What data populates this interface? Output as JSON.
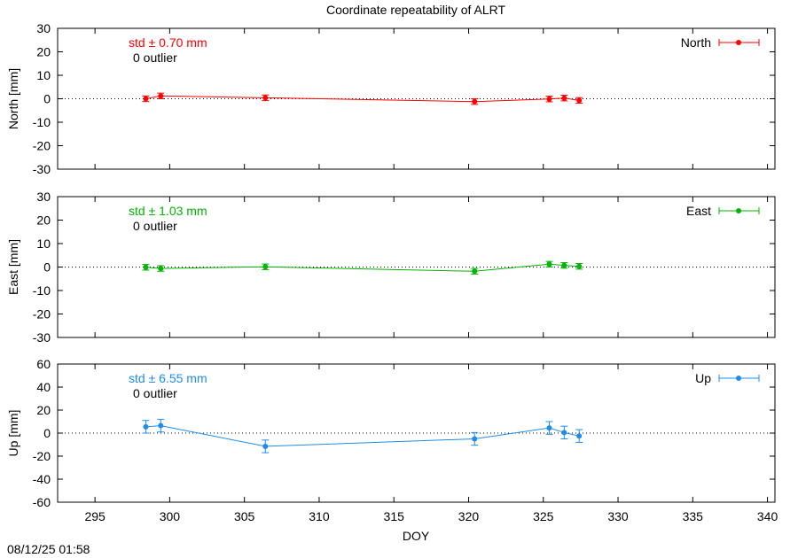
{
  "chart_data": {
    "type": "line",
    "title": "Coordinate repeatability of ALRT",
    "xlabel": "DOY",
    "xlim": [
      292.5,
      340.5
    ],
    "x_ticks": [
      295,
      300,
      305,
      310,
      315,
      320,
      325,
      330,
      335,
      340
    ],
    "timestamp": "08/12/25 01:58",
    "panels": [
      {
        "id": "north",
        "ylabel": "North [mm]",
        "ylim": [
          -30,
          30
        ],
        "y_ticks": [
          30,
          20,
          10,
          0,
          -10,
          -20,
          -30
        ],
        "color": "#ff0000",
        "legend": "North",
        "std_text": "std ± 0.70 mm",
        "outlier_text": "0 outlier",
        "points": [
          {
            "x": 298.4,
            "y": 0.0,
            "err": 1.2
          },
          {
            "x": 299.4,
            "y": 1.2,
            "err": 1.2
          },
          {
            "x": 306.4,
            "y": 0.4,
            "err": 1.2
          },
          {
            "x": 320.4,
            "y": -1.2,
            "err": 1.2
          },
          {
            "x": 325.4,
            "y": -0.1,
            "err": 1.2
          },
          {
            "x": 326.4,
            "y": 0.3,
            "err": 1.2
          },
          {
            "x": 327.4,
            "y": -0.7,
            "err": 1.2
          }
        ]
      },
      {
        "id": "east",
        "ylabel": "East [mm]",
        "ylim": [
          -30,
          30
        ],
        "y_ticks": [
          30,
          20,
          10,
          0,
          -10,
          -20,
          -30
        ],
        "color": "#00b400",
        "legend": "East",
        "std_text": "std ± 1.03 mm",
        "outlier_text": "0 outlier",
        "points": [
          {
            "x": 298.4,
            "y": -0.1,
            "err": 1.2
          },
          {
            "x": 299.4,
            "y": -0.6,
            "err": 1.2
          },
          {
            "x": 306.4,
            "y": 0.1,
            "err": 1.2
          },
          {
            "x": 320.4,
            "y": -1.8,
            "err": 1.2
          },
          {
            "x": 325.4,
            "y": 1.2,
            "err": 1.2
          },
          {
            "x": 326.4,
            "y": 0.7,
            "err": 1.2
          },
          {
            "x": 327.4,
            "y": 0.3,
            "err": 1.2
          }
        ]
      },
      {
        "id": "up",
        "ylabel": "Up [mm]",
        "ylim": [
          -60,
          60
        ],
        "y_ticks": [
          60,
          40,
          20,
          0,
          -20,
          -40,
          -60
        ],
        "color": "#1f8ceb",
        "legend": "Up",
        "std_text": "std ± 6.55 mm",
        "outlier_text": "0 outlier",
        "points": [
          {
            "x": 298.4,
            "y": 5.5,
            "err": 5.5
          },
          {
            "x": 299.4,
            "y": 6.5,
            "err": 5.5
          },
          {
            "x": 306.4,
            "y": -11.5,
            "err": 5.5
          },
          {
            "x": 320.4,
            "y": -5.0,
            "err": 5.5
          },
          {
            "x": 325.4,
            "y": 4.5,
            "err": 5.5
          },
          {
            "x": 326.4,
            "y": 0.5,
            "err": 5.5
          },
          {
            "x": 327.4,
            "y": -2.5,
            "err": 5.5
          }
        ]
      }
    ]
  }
}
